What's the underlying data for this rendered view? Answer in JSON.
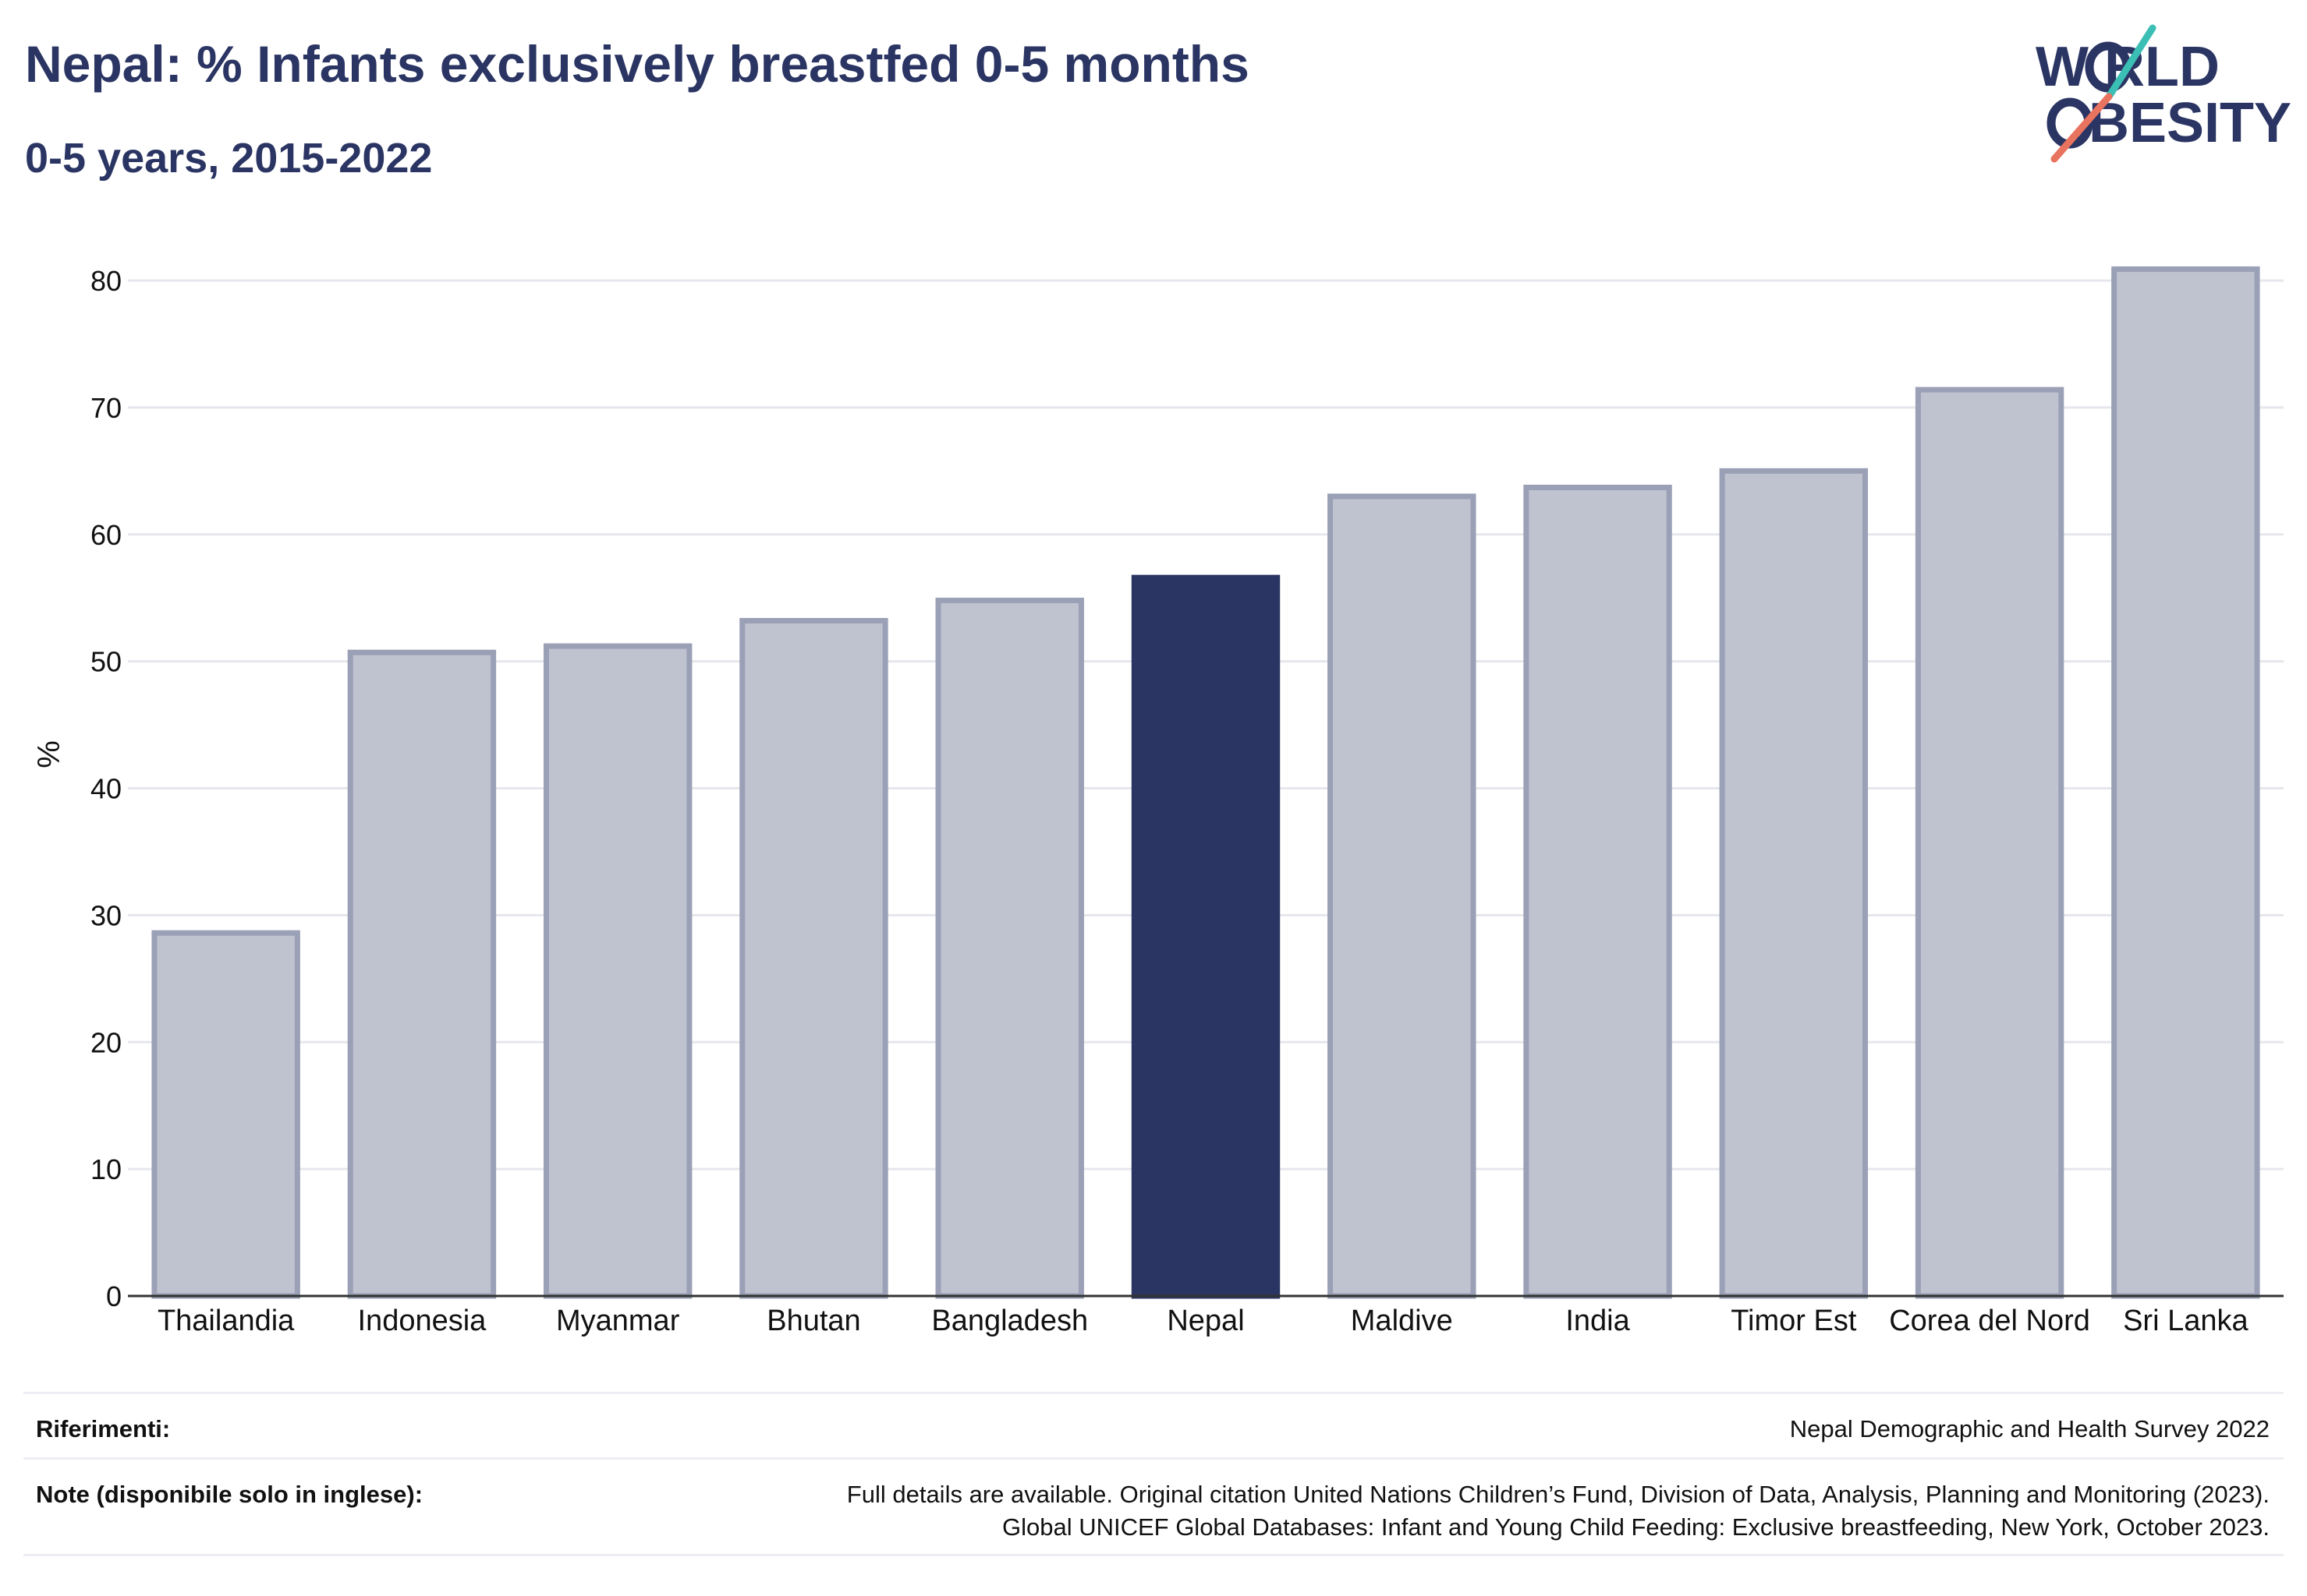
{
  "header": {
    "title": "Nepal: % Infants exclusively breastfed 0-5 months",
    "subtitle": "0-5 years, 2015-2022"
  },
  "logo": {
    "line1": "W RLD",
    "line2": "BESITY",
    "colors": {
      "text": "#2b3563",
      "teal": "#3bbfb5",
      "coral": "#e8735f"
    }
  },
  "chart_data": {
    "type": "bar",
    "categories": [
      "Thailandia",
      "Indonesia",
      "Myanmar",
      "Bhutan",
      "Bangladesh",
      "Nepal",
      "Maldive",
      "India",
      "Timor Est",
      "Corea del Nord",
      "Sri Lanka"
    ],
    "values": [
      28.6,
      50.7,
      51.2,
      53.2,
      54.8,
      56.6,
      63.0,
      63.7,
      65.0,
      71.4,
      80.9
    ],
    "highlight": "Nepal",
    "ylabel": "%",
    "ylim": [
      0,
      80
    ],
    "yticks": [
      0,
      10,
      20,
      30,
      40,
      50,
      60,
      70,
      80
    ],
    "grid": true,
    "colors": {
      "bar": "#bfc2cf",
      "bar_outline": "#9aa0b6",
      "highlight": "#2b3563",
      "grid": "#e6e7ed",
      "axis": "#333333"
    }
  },
  "footer": {
    "references_label": "Riferimenti:",
    "references_value": "Nepal Demographic and Health Survey 2022",
    "notes_label": "Note (disponibile solo in inglese):",
    "notes_line1": "Full details are available. Original citation United Nations Children’s Fund, Division of Data, Analysis, Planning and Monitoring (2023).",
    "notes_line2": "Global UNICEF Global Databases: Infant and Young Child Feeding: Exclusive breastfeeding, New York, October 2023."
  }
}
